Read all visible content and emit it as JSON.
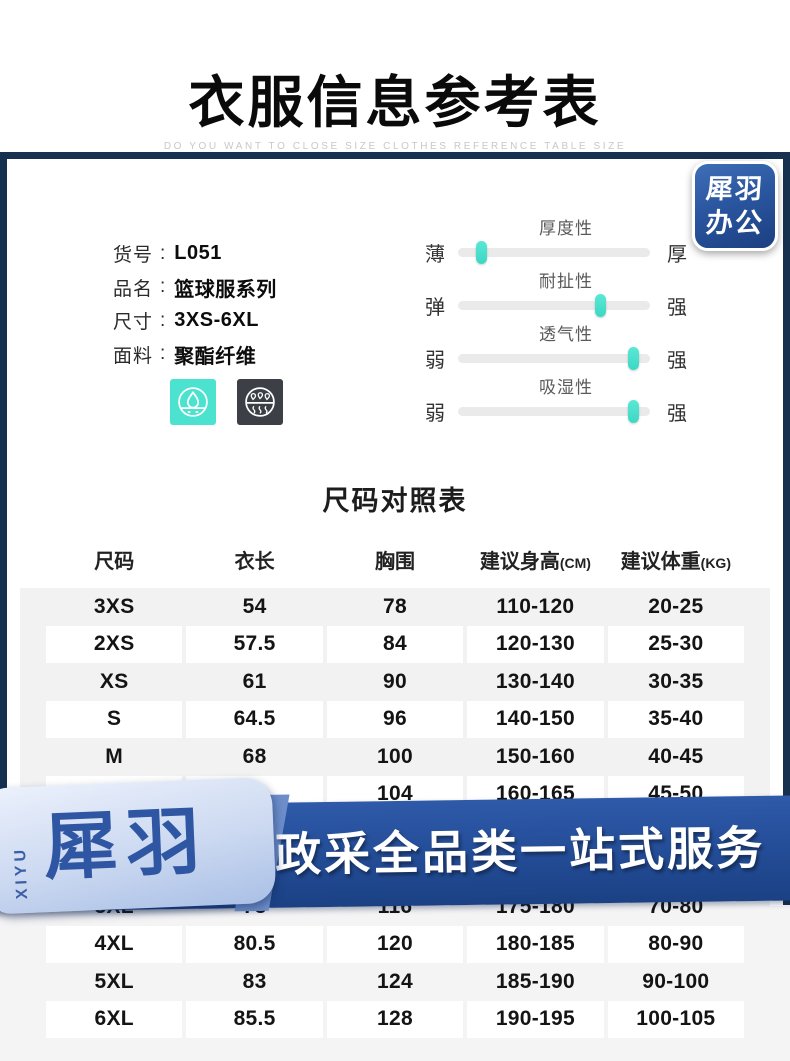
{
  "header": {
    "title": "衣服信息参考表",
    "subtitle": "DO YOU WANT TO CLOSE SIZE CLOTHES REFERENCE TABLE SIZE"
  },
  "badge": {
    "line1": "犀羽",
    "line2": "办公"
  },
  "product": {
    "colon": ":",
    "fields": [
      {
        "label": "货号",
        "value": "L051"
      },
      {
        "label": "品名",
        "value": "篮球服系列"
      },
      {
        "label": "尺寸",
        "value": "3XS-6XL"
      },
      {
        "label": "面料",
        "value": "聚酯纤维"
      }
    ],
    "icons": [
      {
        "name": "moisture-absorb-icon",
        "bg": "#4ce2d0"
      },
      {
        "name": "quick-dry-icon",
        "bg": "#3c4046"
      }
    ]
  },
  "sliders": [
    {
      "title": "厚度性",
      "left": "薄",
      "right": "厚",
      "percent": 12
    },
    {
      "title": "耐扯性",
      "left": "弹",
      "right": "强",
      "percent": 74
    },
    {
      "title": "透气性",
      "left": "弱",
      "right": "强",
      "percent": 91
    },
    {
      "title": "吸湿性",
      "left": "弱",
      "right": "强",
      "percent": 91
    }
  ],
  "size_table": {
    "heading": "尺码对照表",
    "columns": [
      {
        "label": "尺码",
        "unit": ""
      },
      {
        "label": "衣长",
        "unit": ""
      },
      {
        "label": "胸围",
        "unit": ""
      },
      {
        "label": "建议身高",
        "unit": "(CM)"
      },
      {
        "label": "建议体重",
        "unit": "(KG)"
      }
    ],
    "rows": [
      {
        "size": "3XS",
        "length": "54",
        "chest": "78",
        "height": "110-120",
        "weight": "20-25",
        "shade": "gray"
      },
      {
        "size": "2XS",
        "length": "57.5",
        "chest": "84",
        "height": "120-130",
        "weight": "25-30",
        "shade": "white"
      },
      {
        "size": "XS",
        "length": "61",
        "chest": "90",
        "height": "130-140",
        "weight": "30-35",
        "shade": "gray"
      },
      {
        "size": "S",
        "length": "64.5",
        "chest": "96",
        "height": "140-150",
        "weight": "35-40",
        "shade": "white"
      },
      {
        "size": "M",
        "length": "68",
        "chest": "100",
        "height": "150-160",
        "weight": "40-45",
        "shade": "gray"
      },
      {
        "size": "",
        "length": "",
        "chest": "104",
        "height": "160-165",
        "weight": "45-50",
        "shade": "white"
      },
      {
        "size": "",
        "length": "",
        "chest": "",
        "height": "",
        "weight": "",
        "shade": "gray"
      },
      {
        "size": "",
        "length": "",
        "chest": "",
        "height": "",
        "weight": "",
        "shade": "white"
      },
      {
        "size": "3XL",
        "length": "78",
        "chest": "116",
        "height": "175-180",
        "weight": "70-80",
        "shade": "gray"
      },
      {
        "size": "4XL",
        "length": "80.5",
        "chest": "120",
        "height": "180-185",
        "weight": "80-90",
        "shade": "white"
      },
      {
        "size": "5XL",
        "length": "83",
        "chest": "124",
        "height": "185-190",
        "weight": "90-100",
        "shade": "gray"
      },
      {
        "size": "6XL",
        "length": "85.5",
        "chest": "128",
        "height": "190-195",
        "weight": "100-105",
        "shade": "white"
      }
    ]
  },
  "banner": {
    "vertical_text": "XIYU",
    "brand": "犀羽",
    "slogan": "政采全品类一站式服务"
  },
  "colors": {
    "frame_navy": "#16304f",
    "accent_teal": "#4ce2d0",
    "banner_blue": "#234c96",
    "ribbon_light_blue": "#ccd9f1",
    "row_gray": "#f2f2f3"
  }
}
